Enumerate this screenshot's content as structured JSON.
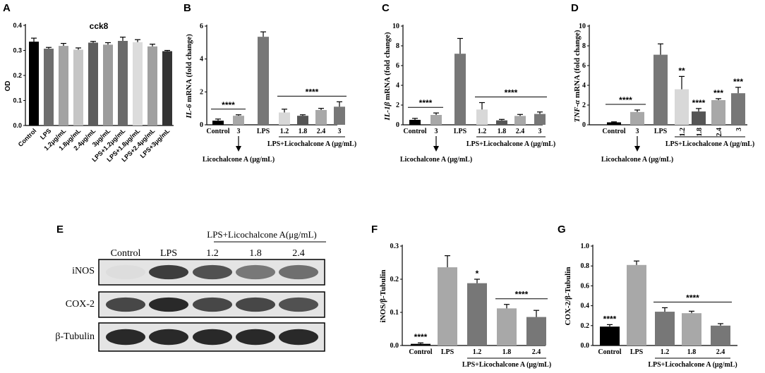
{
  "chart_data": [
    {
      "panel": "A",
      "type": "bar",
      "title": "cck8",
      "ylabel": "OD",
      "ylim": [
        0,
        0.4
      ],
      "yticks": [
        "0.0",
        "0.1",
        "0.2",
        "0.3",
        "0.4"
      ],
      "categories": [
        "Control",
        "LPS",
        "1.2μg/mL",
        "1.8μg/mL",
        "2.4μg/mL",
        "3μg/mL",
        "LPS+1.2μg/mL",
        "LPS+1.8μg/mL",
        "LPS+2.4μg/mL",
        "LPS+3μg/mL"
      ],
      "values": [
        0.335,
        0.307,
        0.318,
        0.303,
        0.331,
        0.323,
        0.338,
        0.333,
        0.316,
        0.297
      ],
      "errors": [
        0.014,
        0.005,
        0.01,
        0.007,
        0.005,
        0.008,
        0.015,
        0.01,
        0.009,
        0.003
      ],
      "colors": [
        "#000000",
        "#6e6e6e",
        "#a3a3a3",
        "#c6c6c6",
        "#5d5d5d",
        "#9c9c9c",
        "#6a6a6a",
        "#dcdcdc",
        "#a0a0a0",
        "#333333"
      ]
    },
    {
      "panel": "B",
      "type": "bar",
      "ylabel_italic": "IL-6",
      "ylabel_rest": " mRNA (fold change)",
      "ylim": [
        0,
        6
      ],
      "yticks": [
        "0",
        "2",
        "4",
        "6"
      ],
      "categories": [
        "Control",
        "3",
        "LPS",
        "1.2",
        "1.8",
        "2.4",
        "3"
      ],
      "values": [
        0.25,
        0.55,
        5.35,
        0.75,
        0.55,
        0.9,
        1.1
      ],
      "errors": [
        0.1,
        0.06,
        0.3,
        0.2,
        0.06,
        0.1,
        0.3
      ],
      "colors": [
        "#000000",
        "#a8a8a8",
        "#777777",
        "#d8d8d8",
        "#555555",
        "#a8a8a8",
        "#777777"
      ],
      "annotations": [
        {
          "text": "****",
          "from": 0,
          "to": 1
        },
        {
          "text": "****",
          "from": 3,
          "to": 6
        }
      ],
      "arrow_label": "Licochalcone A (μg/mL)",
      "group_label": "LPS+Licochalcone A (μg/mL)"
    },
    {
      "panel": "C",
      "type": "bar",
      "ylabel_italic": "IL-1β",
      "ylabel_rest": " mRNA (fold change)",
      "ylim": [
        0,
        10
      ],
      "yticks": [
        "0",
        "2",
        "4",
        "6",
        "8",
        "10"
      ],
      "categories": [
        "Control",
        "3",
        "LPS",
        "1.2",
        "1.8",
        "2.4",
        "3"
      ],
      "values": [
        0.5,
        1.0,
        7.2,
        1.55,
        0.45,
        0.9,
        1.1
      ],
      "errors": [
        0.15,
        0.2,
        1.55,
        0.7,
        0.1,
        0.15,
        0.2
      ],
      "colors": [
        "#000000",
        "#a8a8a8",
        "#777777",
        "#d8d8d8",
        "#555555",
        "#a8a8a8",
        "#777777"
      ],
      "annotations": [
        {
          "text": "****",
          "from": 0,
          "to": 1
        },
        {
          "text": "****",
          "from": 3,
          "to": 6
        }
      ],
      "arrow_label": "Licochalcone A (μg/mL)",
      "group_label": "LPS+Licochalcone A (μg/mL)"
    },
    {
      "panel": "D",
      "type": "bar",
      "ylabel_italic": "TNF-α",
      "ylabel_rest": " mRNA (fold change)",
      "ylim": [
        0,
        10
      ],
      "yticks": [
        "0",
        "2",
        "4",
        "6",
        "8",
        "10"
      ],
      "categories": [
        "Control",
        "3",
        "LPS",
        "1.2",
        "1.8",
        "2.4",
        "3"
      ],
      "values": [
        0.25,
        1.3,
        7.1,
        3.6,
        1.35,
        2.5,
        3.2
      ],
      "errors": [
        0.05,
        0.2,
        1.1,
        1.3,
        0.3,
        0.15,
        0.6
      ],
      "colors": [
        "#000000",
        "#a8a8a8",
        "#777777",
        "#d8d8d8",
        "#555555",
        "#a8a8a8",
        "#777777"
      ],
      "annotations": [
        {
          "text": "****",
          "from": 0,
          "to": 1
        }
      ],
      "star_labels": [
        "",
        "",
        "",
        "**",
        "****",
        "***",
        "***"
      ],
      "arrow_label": "Licochalcone A (μg/mL)",
      "group_label": "LPS+Licochalcone A (μg/mL)"
    },
    {
      "panel": "F",
      "type": "bar",
      "ylabel": "iNOS/β-Tubulin",
      "ylim": [
        0,
        0.3
      ],
      "yticks": [
        "0.0",
        "0.1",
        "0.2",
        "0.3"
      ],
      "categories": [
        "Control",
        "LPS",
        "1.2",
        "1.8",
        "2.4"
      ],
      "values": [
        0.005,
        0.236,
        0.188,
        0.112,
        0.086
      ],
      "errors": [
        0.003,
        0.035,
        0.012,
        0.012,
        0.02
      ],
      "colors": [
        "#000000",
        "#a8a8a8",
        "#777777",
        "#a8a8a8",
        "#777777"
      ],
      "star_labels": [
        "****",
        "",
        "*",
        "",
        ""
      ],
      "annotations": [
        {
          "text": "****",
          "from": 3,
          "to": 4
        }
      ],
      "group_label": "LPS+Licochalcone A (μg/mL)"
    },
    {
      "panel": "G",
      "type": "bar",
      "ylabel": "COX-2/β-Tubulin",
      "ylim": [
        0,
        1.0
      ],
      "yticks": [
        "0.0",
        "0.2",
        "0.4",
        "0.6",
        "0.8",
        "1.0"
      ],
      "categories": [
        "Control",
        "LPS",
        "1.2",
        "1.8",
        "2.4"
      ],
      "values": [
        0.19,
        0.81,
        0.34,
        0.325,
        0.2
      ],
      "errors": [
        0.02,
        0.04,
        0.04,
        0.02,
        0.02
      ],
      "colors": [
        "#000000",
        "#a8a8a8",
        "#777777",
        "#a8a8a8",
        "#777777"
      ],
      "star_labels": [
        "****",
        "",
        "",
        "",
        ""
      ],
      "annotations": [
        {
          "text": "****",
          "from": 2,
          "to": 4
        }
      ],
      "group_label": "LPS+Licochalcone A (μg/mL)"
    }
  ],
  "panel_labels": {
    "A": "A",
    "B": "B",
    "C": "C",
    "D": "D",
    "E": "E",
    "F": "F",
    "G": "G"
  },
  "blot": {
    "header": "LPS+Licochalcone A(μg/mL)",
    "lanes": [
      "Control",
      "LPS",
      "1.2",
      "1.8",
      "2.4"
    ],
    "rows": [
      {
        "label": "iNOS",
        "intensity": [
          0.05,
          0.85,
          0.75,
          0.55,
          0.6
        ]
      },
      {
        "label": "COX-2",
        "intensity": [
          0.8,
          0.95,
          0.8,
          0.8,
          0.75
        ]
      },
      {
        "label": "β-Tubulin",
        "intensity": [
          0.95,
          0.95,
          0.95,
          0.95,
          0.95
        ]
      }
    ]
  }
}
